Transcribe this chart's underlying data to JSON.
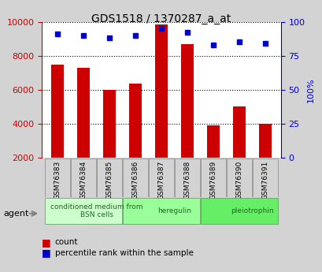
{
  "title": "GDS1518 / 1370287_a_at",
  "samples": [
    "GSM76383",
    "GSM76384",
    "GSM76385",
    "GSM76386",
    "GSM76387",
    "GSM76388",
    "GSM76389",
    "GSM76390",
    "GSM76391"
  ],
  "counts": [
    7500,
    7300,
    6000,
    6350,
    9850,
    8700,
    3900,
    5000,
    4000
  ],
  "percentiles": [
    91,
    90,
    88,
    90,
    95,
    92,
    83,
    85,
    84
  ],
  "ylim_left": [
    2000,
    10000
  ],
  "ylim_right": [
    0,
    100
  ],
  "yticks_left": [
    2000,
    4000,
    6000,
    8000,
    10000
  ],
  "yticks_right": [
    0,
    25,
    50,
    75,
    100
  ],
  "groups": [
    {
      "label": "conditioned medium from\nBSN cells",
      "start": 0,
      "end": 3,
      "color": "#ccffcc"
    },
    {
      "label": "heregulin",
      "start": 3,
      "end": 6,
      "color": "#99ff99"
    },
    {
      "label": "pleiotrophin",
      "start": 6,
      "end": 9,
      "color": "#66ee66"
    }
  ],
  "bar_color": "#cc0000",
  "dot_color": "#0000cc",
  "bar_width": 0.5,
  "background_color": "#d3d3d3",
  "plot_bg_color": "#ffffff",
  "grid_color": "#000000",
  "left_axis_color": "#cc0000",
  "right_axis_color": "#0000cc",
  "agent_label": "agent",
  "legend_count_label": "count",
  "legend_pct_label": "percentile rank within the sample"
}
